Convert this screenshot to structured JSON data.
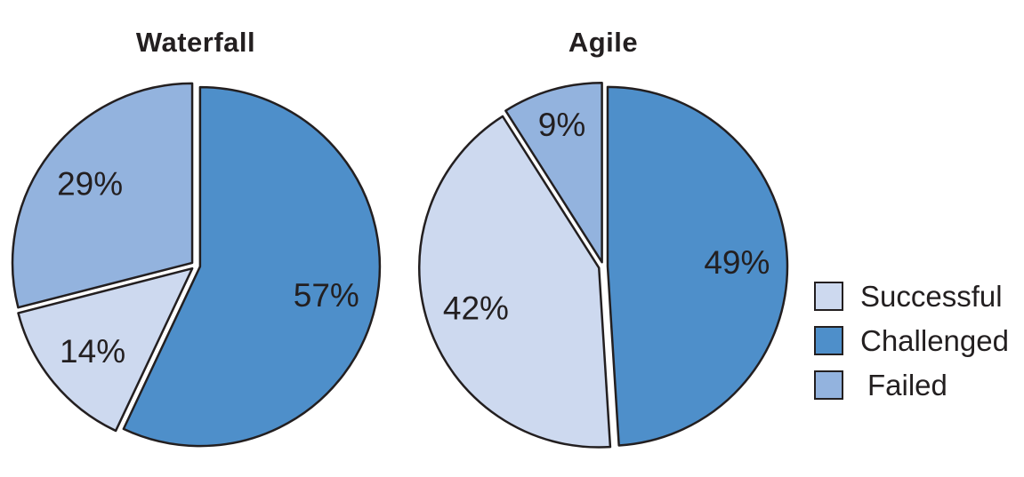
{
  "page": {
    "background": "#ffffff"
  },
  "style": {
    "outline_color": "#231f20",
    "text_color": "#231f20"
  },
  "chart_data": [
    {
      "type": "pie",
      "title": "Waterfall",
      "labels": [
        "Challenged",
        "Successful",
        "Failed"
      ],
      "values": [
        57,
        14,
        29
      ],
      "value_labels": [
        "57%",
        "14%",
        "29%"
      ],
      "colors": [
        "#4e8fca",
        "#cdd9ef",
        "#93b3de"
      ],
      "start_angle_deg": 0,
      "direction": "clockwise",
      "exploded": true
    },
    {
      "type": "pie",
      "title": "Agile",
      "labels": [
        "Challenged",
        "Successful",
        "Failed"
      ],
      "values": [
        49,
        42,
        9
      ],
      "value_labels": [
        "49%",
        "42%",
        "9%"
      ],
      "colors": [
        "#4e8fca",
        "#cdd9ef",
        "#93b3de"
      ],
      "start_angle_deg": 0,
      "direction": "clockwise",
      "exploded": true
    }
  ],
  "legend": {
    "position": "right",
    "items": [
      {
        "label": "Successful",
        "color": "#cdd9ef"
      },
      {
        "label": "Challenged",
        "color": "#4e8fca"
      },
      {
        "label": "Failed",
        "color": "#93b3de"
      }
    ]
  }
}
